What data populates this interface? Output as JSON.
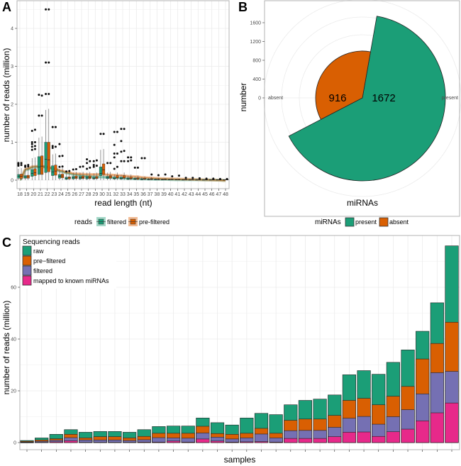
{
  "panels": {
    "A": {
      "letter": "A"
    },
    "B": {
      "letter": "B"
    },
    "C": {
      "letter": "C"
    }
  },
  "colors": {
    "teal": "#1b9e77",
    "orange": "#d95f02",
    "purple": "#7570b3",
    "pink": "#e7298a",
    "grid": "#ebebeb",
    "frame": "#b3b3b3"
  },
  "chart_data": [
    {
      "id": "A",
      "type": "box",
      "title": "",
      "xlabel": "read length (nt)",
      "ylabel": "number of reads (million)",
      "ylim": [
        -0.2,
        4.6
      ],
      "yticks": [
        0,
        1,
        2,
        3,
        4
      ],
      "x": [
        18,
        19,
        20,
        21,
        22,
        23,
        24,
        25,
        26,
        27,
        28,
        29,
        30,
        31,
        32,
        33,
        34,
        35,
        36,
        37,
        38,
        39,
        40,
        41,
        42,
        43,
        44,
        45,
        46,
        47,
        48
      ],
      "legend": {
        "title": "reads",
        "position": "bottom",
        "entries": [
          "filtered",
          "pre-filtered"
        ]
      },
      "series": [
        {
          "name": "filtered",
          "q1": [
            0.05,
            0.05,
            0.1,
            0.15,
            0.2,
            0.12,
            0.05,
            0.02,
            0.03,
            0.03,
            0.03,
            0.03,
            0.12,
            0.04,
            0.03,
            0.03,
            0.02,
            0.02,
            0.01,
            0.01,
            0.01,
            0.01,
            0.01,
            0.005,
            0.005,
            0.005,
            0.005,
            0.005,
            0.005,
            0.005,
            0.005
          ],
          "median": [
            0.1,
            0.08,
            0.18,
            0.35,
            0.55,
            0.22,
            0.1,
            0.05,
            0.06,
            0.06,
            0.06,
            0.05,
            0.18,
            0.07,
            0.05,
            0.05,
            0.04,
            0.03,
            0.02,
            0.02,
            0.015,
            0.015,
            0.01,
            0.01,
            0.01,
            0.01,
            0.01,
            0.01,
            0.01,
            0.01,
            0.01
          ],
          "q3": [
            0.15,
            0.12,
            0.28,
            0.62,
            1.0,
            0.38,
            0.15,
            0.08,
            0.1,
            0.1,
            0.1,
            0.08,
            0.35,
            0.1,
            0.08,
            0.08,
            0.06,
            0.05,
            0.04,
            0.03,
            0.03,
            0.02,
            0.02,
            0.02,
            0.015,
            0.015,
            0.015,
            0.015,
            0.015,
            0.015,
            0.015
          ],
          "whisker_hi": [
            0.3,
            0.3,
            0.58,
            1.12,
            1.85,
            0.68,
            0.3,
            0.18,
            0.2,
            0.2,
            0.2,
            0.18,
            0.8,
            0.2,
            0.15,
            0.15,
            0.12,
            0.1,
            0.08,
            0.06,
            0.05,
            0.04,
            0.04,
            0.03,
            0.03,
            0.03,
            0.03,
            0.02,
            0.02,
            0.02,
            0.02
          ],
          "outliers": [
            [
              0.38,
              0.42,
              0.45
            ],
            [
              0.35,
              0.38
            ],
            [
              0.8,
              0.88,
              0.95,
              1.0,
              1.3
            ],
            [
              1.7,
              2.25
            ],
            [
              2.27,
              3.1,
              4.5
            ],
            [
              0.85,
              0.9,
              1.4
            ],
            [
              0.35,
              0.63,
              0.95
            ],
            [
              0.23
            ],
            [
              0.28
            ],
            [
              0.35
            ],
            [
              0.3,
              0.45,
              0.55
            ],
            [
              0.35,
              0.4,
              0.5
            ],
            [
              1.22
            ],
            [
              0.45
            ],
            [
              0.3,
              0.6,
              0.7,
              0.93,
              1.27
            ],
            [
              0.5,
              0.75,
              1.03,
              1.35
            ],
            [
              0.5,
              0.6
            ],
            [
              0.33
            ],
            [
              0.58
            ],
            [],
            [],
            [],
            [],
            [],
            [],
            [],
            [],
            [],
            [],
            [],
            []
          ]
        },
        {
          "name": "pre-filtered",
          "q1": [
            0.05,
            0.05,
            0.12,
            0.15,
            0.22,
            0.13,
            0.06,
            0.03,
            0.04,
            0.04,
            0.04,
            0.04,
            0.15,
            0.05,
            0.05,
            0.05,
            0.03,
            0.02,
            0.02,
            0.015,
            0.01,
            0.01,
            0.01,
            0.01,
            0.005,
            0.005,
            0.005,
            0.005,
            0.005,
            0.005,
            0.005
          ],
          "median": [
            0.1,
            0.09,
            0.2,
            0.37,
            0.53,
            0.24,
            0.11,
            0.06,
            0.07,
            0.07,
            0.07,
            0.06,
            0.27,
            0.08,
            0.07,
            0.06,
            0.05,
            0.04,
            0.03,
            0.025,
            0.02,
            0.02,
            0.015,
            0.015,
            0.01,
            0.01,
            0.01,
            0.01,
            0.01,
            0.01,
            0.01
          ],
          "q3": [
            0.16,
            0.13,
            0.3,
            0.64,
            1.0,
            0.4,
            0.16,
            0.09,
            0.11,
            0.11,
            0.11,
            0.1,
            0.43,
            0.12,
            0.12,
            0.12,
            0.08,
            0.06,
            0.05,
            0.04,
            0.03,
            0.03,
            0.025,
            0.02,
            0.02,
            0.02,
            0.02,
            0.02,
            0.02,
            0.02,
            0.02
          ],
          "whisker_hi": [
            0.32,
            0.32,
            0.6,
            1.15,
            1.88,
            0.7,
            0.32,
            0.2,
            0.22,
            0.22,
            0.22,
            0.2,
            0.82,
            0.22,
            0.2,
            0.2,
            0.15,
            0.12,
            0.1,
            0.08,
            0.06,
            0.05,
            0.05,
            0.04,
            0.04,
            0.04,
            0.03,
            0.03,
            0.03,
            0.03,
            0.03
          ],
          "outliers": [
            [
              0.4,
              0.45
            ],
            [
              0.36,
              0.4
            ],
            [
              0.82,
              0.9,
              1.0,
              1.33
            ],
            [
              1.7,
              2.23
            ],
            [
              2.27,
              3.1,
              4.5
            ],
            [
              0.88,
              1.4
            ],
            [
              0.36,
              0.64
            ],
            [
              0.24
            ],
            [
              0.29
            ],
            [
              0.36
            ],
            [
              0.33,
              0.5
            ],
            [
              0.38,
              0.52
            ],
            [
              1.22
            ],
            [
              0.45
            ],
            [
              0.35,
              0.7,
              1.27
            ],
            [
              0.5,
              0.77,
              1.35
            ],
            [
              0.52,
              0.6
            ],
            [
              0.33
            ],
            [
              0.58
            ],
            [
              0.15
            ],
            [
              0.13
            ],
            [
              0.15
            ],
            [
              0.1
            ],
            [
              0.12
            ],
            [
              0.06
            ],
            [
              0.06
            ],
            [
              0.05
            ],
            [
              0.04
            ],
            [
              0.04
            ],
            [
              0.03
            ],
            [
              0.03
            ]
          ]
        }
      ],
      "trend": {
        "filtered": [
          0.02,
          0.28,
          0.34,
          0.36,
          0.34,
          0.29,
          0.23,
          0.18,
          0.14,
          0.12,
          0.1,
          0.09,
          0.08,
          0.07,
          0.06,
          0.05,
          0.04,
          0.035,
          0.03,
          0.025,
          0.02,
          0.02,
          0.015,
          0.01,
          0.01,
          0.01,
          0.01,
          0.005,
          0.005,
          0.0,
          -0.01
        ],
        "pre-filtered": [
          0.03,
          0.3,
          0.36,
          0.37,
          0.35,
          0.3,
          0.25,
          0.2,
          0.17,
          0.16,
          0.15,
          0.15,
          0.15,
          0.14,
          0.13,
          0.12,
          0.1,
          0.09,
          0.07,
          0.06,
          0.05,
          0.04,
          0.035,
          0.03,
          0.025,
          0.02,
          0.015,
          0.01,
          0.005,
          0.0,
          -0.01
        ]
      }
    },
    {
      "id": "B",
      "type": "pie",
      "subtype": "polar-bar",
      "xlabel": "miRNAs",
      "ylabel": "number",
      "yticks": [
        0,
        400,
        800,
        1200,
        1600
      ],
      "angle_labels": [
        "absent",
        "present"
      ],
      "categories": [
        "present",
        "absent"
      ],
      "values": [
        1672,
        916
      ],
      "legend": {
        "title": "miRNAs",
        "position": "bottom",
        "entries": [
          "present",
          "absent"
        ]
      }
    },
    {
      "id": "C",
      "type": "bar",
      "subtype": "overlaid-stacked",
      "xlabel": "samples",
      "ylabel": "number of reads (million)",
      "ylim": [
        -3,
        80
      ],
      "yticks": [
        0,
        20,
        40,
        60
      ],
      "legend": {
        "title": "Sequencing reads",
        "position": "top-left",
        "entries": [
          "raw",
          "pre−filtered",
          "filtered",
          "mapped to known miRNAs"
        ]
      },
      "categories_count": 30,
      "series": [
        {
          "name": "raw",
          "values": [
            0.8,
            1.8,
            3.2,
            5.0,
            4.0,
            4.3,
            4.3,
            4.0,
            5.0,
            6.2,
            6.4,
            6.4,
            9.5,
            7.7,
            6.8,
            9.5,
            11.3,
            10.8,
            14.6,
            16.3,
            16.8,
            18.4,
            26.2,
            27.8,
            26.4,
            31.0,
            35.8,
            43.0,
            54.0,
            76.0
          ]
        },
        {
          "name": "pre-filtered",
          "values": [
            0.5,
            1.0,
            1.5,
            3.2,
            1.8,
            2.3,
            2.3,
            1.8,
            2.4,
            3.6,
            3.6,
            3.6,
            6.3,
            3.5,
            3.2,
            3.6,
            5.5,
            3.6,
            8.6,
            9.1,
            9.1,
            10.5,
            16.3,
            17.1,
            14.6,
            17.9,
            21.7,
            32.3,
            38.3,
            46.5
          ]
        },
        {
          "name": "filtered",
          "values": [
            0.2,
            0.5,
            0.9,
            1.9,
            1.0,
            1.0,
            1.0,
            0.8,
            1.1,
            1.9,
            1.8,
            1.7,
            3.7,
            2.1,
            1.4,
            1.8,
            3.3,
            1.8,
            4.6,
            4.7,
            4.7,
            5.9,
            9.4,
            10.1,
            7.1,
            10.0,
            12.7,
            18.8,
            27.0,
            27.5
          ]
        },
        {
          "name": "mapped to known miRNAs",
          "values": [
            0.05,
            0.1,
            0.3,
            0.7,
            0.1,
            0.1,
            0.1,
            0.1,
            0.2,
            0.2,
            0.6,
            0.2,
            1.4,
            0.6,
            0.2,
            0.3,
            0.4,
            0.2,
            1.6,
            1.6,
            1.6,
            2.3,
            4.0,
            4.1,
            2.4,
            4.2,
            5.2,
            8.4,
            11.5,
            15.3
          ]
        }
      ]
    }
  ]
}
